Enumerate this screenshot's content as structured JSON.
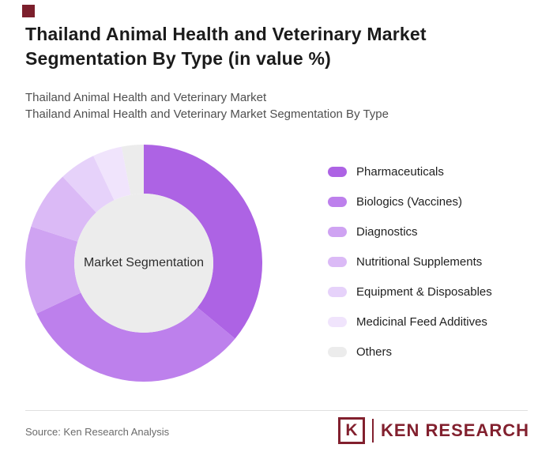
{
  "brand": {
    "corner_square_color": "#7c1f2c"
  },
  "header": {
    "title": "Thailand Animal Health and Veterinary Market Segmentation By Type (in value %)",
    "subtitle_line1": "Thailand Animal Health and Veterinary Market",
    "subtitle_line2": "Thailand Animal Health and Veterinary Market Segmentation By Type"
  },
  "chart_data": {
    "type": "pie",
    "variant": "donut",
    "title": "Thailand Animal Health and Veterinary Market Segmentation By Type (in value %)",
    "center_label": "Market Segmentation",
    "center_color": "#ececec",
    "start_angle_deg": 0,
    "direction": "clockwise",
    "inner_radius_ratio": 0.587,
    "legend_position": "right",
    "values_shown_on_chart": false,
    "slices": [
      {
        "label": "Pharmaceuticals",
        "value": 36,
        "color": "#ad63e4"
      },
      {
        "label": "Biologics (Vaccines)",
        "value": 32,
        "color": "#bd80ec"
      },
      {
        "label": "Diagnostics",
        "value": 12,
        "color": "#cfa3f2"
      },
      {
        "label": "Nutritional Supplements",
        "value": 8,
        "color": "#dbbaf6"
      },
      {
        "label": "Equipment & Disposables",
        "value": 5,
        "color": "#e6d2fa"
      },
      {
        "label": "Medicinal Feed Additives",
        "value": 4,
        "color": "#f0e4fc"
      },
      {
        "label": "Others",
        "value": 3,
        "color": "#ececec"
      }
    ]
  },
  "footer": {
    "source": "Source: Ken Research Analysis",
    "logo": {
      "k_letter": "K",
      "name": "KEN RESEARCH",
      "color": "#82202e"
    }
  }
}
